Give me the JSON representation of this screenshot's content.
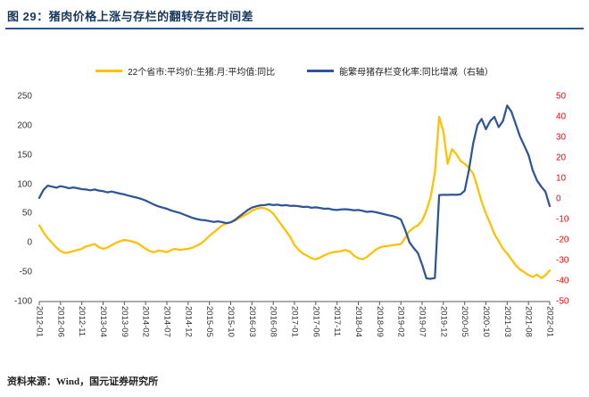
{
  "header": {
    "title": "图 29：猪肉价格上涨与存栏的翻转存在时间差"
  },
  "footer": {
    "source": "资料来源：Wind，国元证券研究所"
  },
  "colors": {
    "title_navy": "#17375E",
    "rule_blue": "#2E5597",
    "series_yellow": "#FFC000",
    "series_blue": "#2E5597",
    "right_axis_red": "#FF0000",
    "axis_gray": "#595959"
  },
  "chart_data": {
    "type": "line",
    "legend_position": "top",
    "grid": false,
    "months_per_tick": 5,
    "x_tick_labels": [
      "2012-01",
      "2012-06",
      "2012-11",
      "2013-04",
      "2013-09",
      "2014-02",
      "2014-07",
      "2014-12",
      "2015-05",
      "2015-10",
      "2016-03",
      "2016-08",
      "2017-01",
      "2017-06",
      "2017-11",
      "2018-04",
      "2018-09",
      "2019-02",
      "2019-07",
      "2019-12",
      "2020-05",
      "2020-10",
      "2021-03",
      "2021-08",
      "2022-01"
    ],
    "left_axis": {
      "min": -100,
      "max": 250,
      "ticks": [
        250,
        200,
        150,
        100,
        50,
        0,
        -50,
        -100
      ]
    },
    "right_axis": {
      "min": -50,
      "max": 50,
      "ticks": [
        50,
        40,
        30,
        20,
        10,
        0,
        -10,
        -20,
        -30,
        -40,
        -50
      ],
      "color": "#FF0000"
    },
    "series": [
      {
        "name": "22个省市:平均价:生猪:月:平均值:同比",
        "axis": "left",
        "color": "#FFC000",
        "values": [
          30,
          18,
          8,
          0,
          -8,
          -14,
          -17,
          -16,
          -14,
          -12,
          -10,
          -6,
          -4,
          -2,
          -7,
          -10,
          -8,
          -4,
          0,
          3,
          5,
          4,
          2,
          0,
          -5,
          -10,
          -14,
          -16,
          -13,
          -14,
          -16,
          -12,
          -10,
          -12,
          -11,
          -10,
          -8,
          -5,
          -1,
          5,
          12,
          18,
          24,
          30,
          33,
          35,
          38,
          42,
          46,
          50,
          55,
          58,
          60,
          59,
          56,
          50,
          40,
          30,
          20,
          10,
          -4,
          -12,
          -18,
          -22,
          -26,
          -28,
          -25,
          -21,
          -18,
          -16,
          -15,
          -14,
          -12,
          -15,
          -22,
          -26,
          -28,
          -24,
          -18,
          -12,
          -8,
          -6,
          -5,
          -4,
          -3,
          -2,
          8,
          20,
          26,
          30,
          38,
          55,
          78,
          120,
          215,
          190,
          135,
          160,
          152,
          140,
          135,
          128,
          118,
          95,
          70,
          50,
          33,
          15,
          3,
          -10,
          -18,
          -28,
          -38,
          -45,
          -50,
          -55,
          -58,
          -54,
          -60,
          -55,
          -47
        ]
      },
      {
        "name": "能繁母猪存栏变化率:同比增减（右轴）",
        "axis": "right",
        "color": "#2E5597",
        "values": [
          0.5,
          4.5,
          6.5,
          6,
          5.5,
          6.2,
          5.8,
          5.2,
          5.6,
          5.2,
          4.8,
          4.6,
          4.2,
          4.6,
          4.1,
          3.8,
          3.2,
          3.6,
          3.1,
          2.6,
          2.2,
          1.6,
          1.1,
          0.6,
          0,
          -0.8,
          -1.8,
          -2.8,
          -3.6,
          -4.2,
          -4.8,
          -5.6,
          -6.2,
          -6.8,
          -7.6,
          -8.4,
          -9.2,
          -9.8,
          -10.2,
          -10.4,
          -10.8,
          -11.2,
          -10.9,
          -11.3,
          -11.8,
          -11.4,
          -10.2,
          -8.6,
          -7,
          -5.4,
          -4.2,
          -3.6,
          -3.1,
          -3,
          -2.6,
          -3,
          -2.8,
          -3.2,
          -3,
          -3.4,
          -3.3,
          -3.5,
          -3.9,
          -3.8,
          -4.3,
          -4.1,
          -4.4,
          -4.8,
          -4.7,
          -5.2,
          -5.4,
          -5.1,
          -5,
          -5.2,
          -5.5,
          -5.4,
          -5.8,
          -6.3,
          -6.1,
          -6.4,
          -6.9,
          -7.4,
          -7.9,
          -8.3,
          -9,
          -10,
          -14.9,
          -21,
          -23.9,
          -26.3,
          -32,
          -38.7,
          -38.9,
          -38.5,
          1.9,
          2,
          2,
          2.1,
          2,
          2.2,
          4,
          14,
          27,
          36,
          39,
          34,
          38,
          40,
          35,
          38,
          45.5,
          42.5,
          36.5,
          30.5,
          26,
          21.5,
          14,
          9,
          6,
          3.5,
          -3.5
        ]
      }
    ]
  }
}
